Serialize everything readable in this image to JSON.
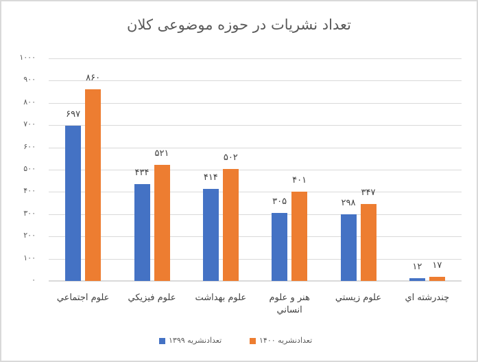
{
  "chart_data": {
    "type": "bar",
    "title": "تعداد نشریات در حوزه موضوعی کلان",
    "xlabel": "",
    "ylabel": "",
    "ylim": [
      0,
      1000
    ],
    "grid": true,
    "legend_position": "bottom",
    "yticks": [
      "۱۰۰۰",
      "۹۰۰",
      "۸۰۰",
      "۷۰۰",
      "۶۰۰",
      "۵۰۰",
      "۴۰۰",
      "۳۰۰",
      "۲۰۰",
      "۱۰۰",
      "۰"
    ],
    "ytick_values": [
      1000,
      900,
      800,
      700,
      600,
      500,
      400,
      300,
      200,
      100,
      0
    ],
    "categories": [
      "علوم اجتماعي",
      "علوم فيزيكي",
      "علوم بهداشت",
      "هنر و علوم انساني",
      "علوم زيستي",
      "چندرشته اي"
    ],
    "category_lines": [
      [
        "علوم اجتماعي"
      ],
      [
        "علوم فيزيكي"
      ],
      [
        "علوم بهداشت"
      ],
      [
        "هنر و علوم",
        "انساني"
      ],
      [
        "علوم زيستي"
      ],
      [
        "چندرشته اي"
      ]
    ],
    "series": [
      {
        "name": "تعدادنشریه ۱۳۹۹",
        "color": "#4472c4",
        "values": [
          697,
          434,
          414,
          305,
          298,
          12
        ],
        "labels": [
          "۶۹۷",
          "۴۳۴",
          "۴۱۴",
          "۳۰۵",
          "۲۹۸",
          "۱۲"
        ]
      },
      {
        "name": "تعدادنشریه ۱۴۰۰",
        "color": "#ed7d31",
        "values": [
          860,
          521,
          502,
          401,
          347,
          17
        ],
        "labels": [
          "۸۶۰",
          "۵۲۱",
          "۵۰۲",
          "۴۰۱",
          "۳۴۷",
          "۱۷"
        ]
      }
    ]
  },
  "legend": {
    "items": [
      {
        "label": "تعدادنشریه ۱۳۹۹",
        "color": "#4472c4"
      },
      {
        "label": "تعدادنشریه ۱۴۰۰",
        "color": "#ed7d31"
      }
    ]
  }
}
